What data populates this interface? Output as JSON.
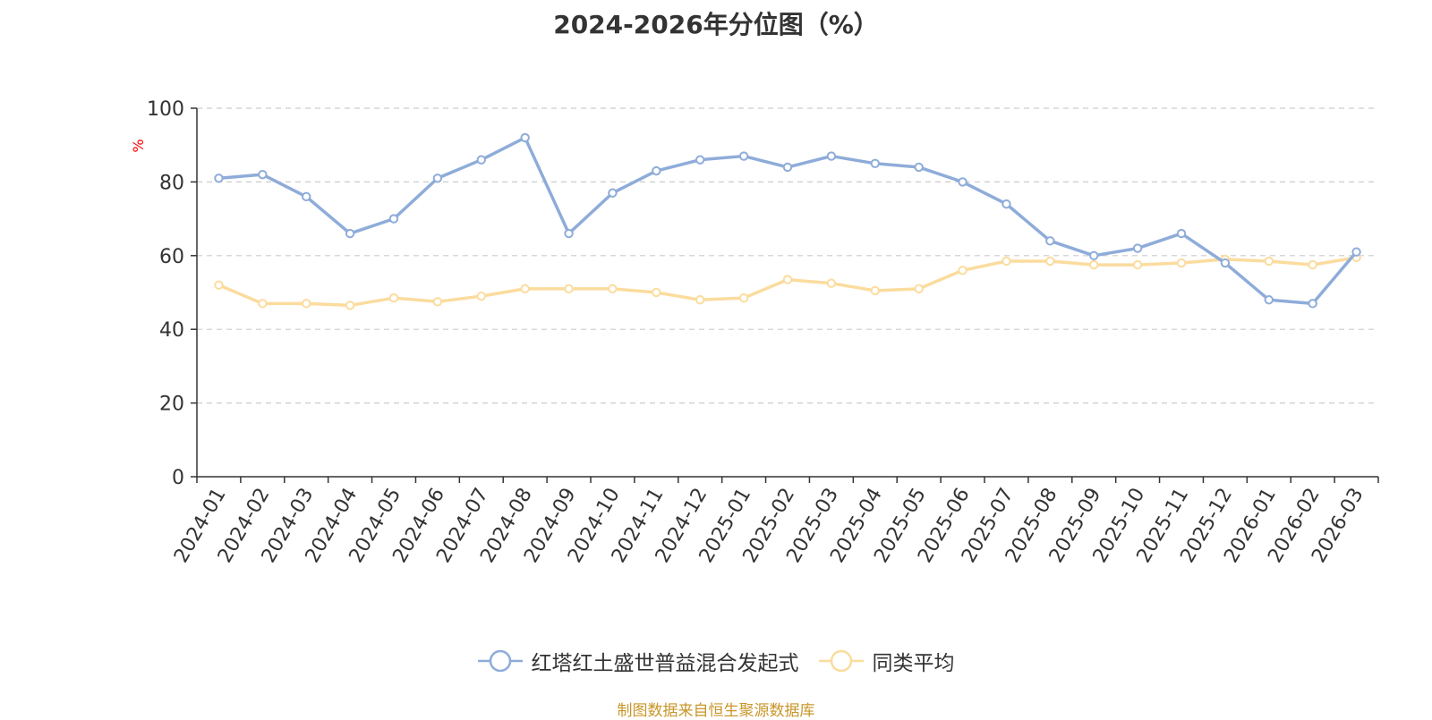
{
  "chart_data": {
    "type": "line",
    "title": "2024-2026年分位图（%）",
    "ylabel": "%",
    "xlabel": "",
    "ylim": [
      0,
      100
    ],
    "yticks": [
      0,
      20,
      40,
      60,
      80,
      100
    ],
    "grid": true,
    "legend_position": "bottom",
    "categories": [
      "2024-01",
      "2024-02",
      "2024-03",
      "2024-04",
      "2024-05",
      "2024-06",
      "2024-07",
      "2024-08",
      "2024-09",
      "2024-10",
      "2024-11",
      "2024-12",
      "2025-01",
      "2025-02",
      "2025-03",
      "2025-04",
      "2025-05",
      "2025-06",
      "2025-07",
      "2025-08",
      "2025-09",
      "2025-10",
      "2025-11",
      "2025-12",
      "2026-01",
      "2026-02",
      "2026-03"
    ],
    "series": [
      {
        "name": "红塔红土盛世普益混合发起式",
        "color": "#8eacd9",
        "values": [
          81,
          82,
          76,
          66,
          70,
          81,
          86,
          92,
          66,
          77,
          83,
          86,
          87,
          84,
          87,
          85,
          84,
          80,
          74,
          64,
          60,
          62,
          66,
          58,
          48,
          47,
          61
        ]
      },
      {
        "name": "同类平均",
        "color": "#fbdc9e",
        "values": [
          52,
          47,
          47,
          46.5,
          48.5,
          47.5,
          49,
          51,
          51,
          51,
          50,
          48,
          48.5,
          53.5,
          52.5,
          50.5,
          51,
          56,
          58.5,
          58.5,
          57.5,
          57.5,
          58,
          59,
          58.5,
          57.5,
          59.5
        ]
      }
    ]
  },
  "source_note": "制图数据来自恒生聚源数据库"
}
